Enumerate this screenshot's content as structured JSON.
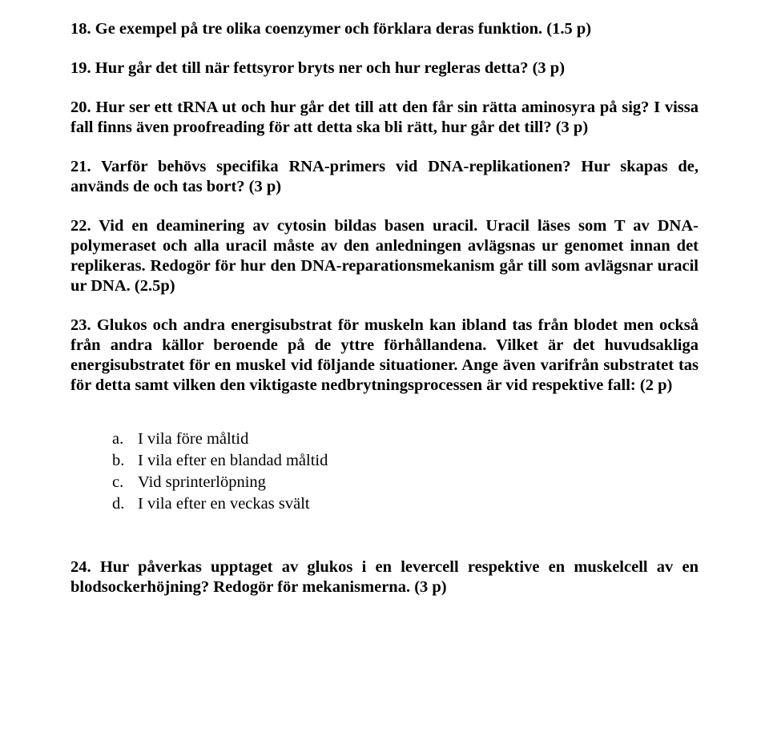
{
  "q18": "18. Ge exempel på tre olika coenzymer och förklara deras funktion. (1.5 p)",
  "q19": "19. Hur går det till när fettsyror bryts ner och hur regleras detta? (3 p)",
  "q20": "20. Hur ser ett tRNA ut och hur går det till att den får sin rätta aminosyra på sig? I vissa fall finns även proofreading för att detta ska bli rätt, hur går det till? (3 p)",
  "q21": "21. Varför behövs specifika RNA-primers vid DNA-replikationen? Hur skapas de, används de och tas bort?  (3 p)",
  "q22": "22. Vid en deaminering av cytosin bildas basen uracil. Uracil läses som T av DNA-polymeraset och alla uracil måste av den anledningen avlägsnas ur genomet innan det replikeras. Redogör för hur den DNA-reparationsmekanism går till som avlägsnar uracil ur DNA. (2.5p)",
  "q23": "23. Glukos och andra energisubstrat för muskeln kan ibland tas från blodet men också från andra källor beroende på de yttre förhållandena. Vilket är det huvudsakliga energisubstratet för en muskel vid följande situationer. Ange även varifrån substratet tas för detta samt vilken den viktigaste nedbrytningsprocessen är vid respektive fall: (2 p)",
  "q23_list": {
    "a": {
      "label": "a.",
      "text": "I vila före måltid"
    },
    "b": {
      "label": "b.",
      "text": "I vila efter en blandad måltid"
    },
    "c": {
      "label": "c.",
      "text": "Vid sprinterlöpning"
    },
    "d": {
      "label": "d.",
      "text": "I vila efter en veckas svält"
    }
  },
  "q24": "24. Hur påverkas upptaget av glukos i en levercell respektive en muskelcell av en blodsockerhöjning? Redogör för mekanismerna. (3 p)"
}
